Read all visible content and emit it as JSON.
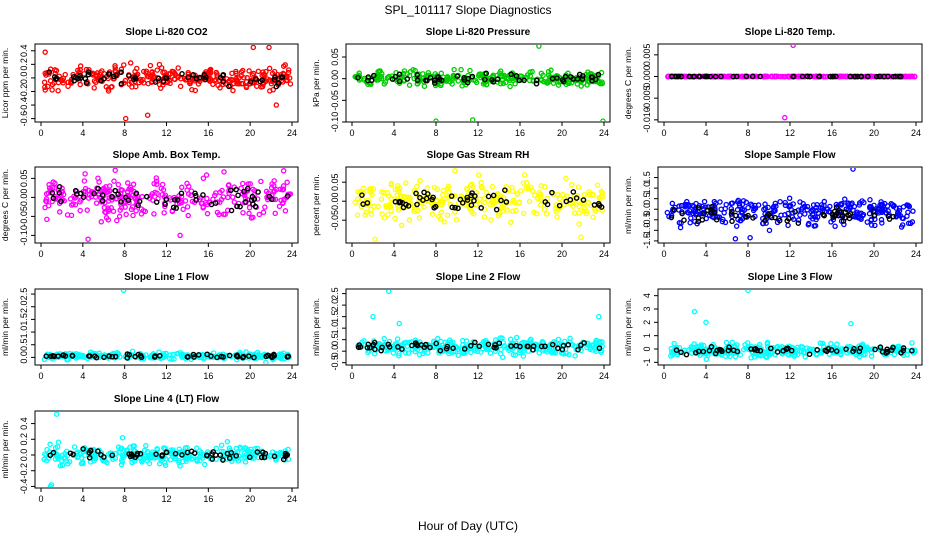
{
  "title": "SPL_101117  Slope Diagnostics",
  "xlabel": "Hour of Day (UTC)",
  "colors": {
    "axes": "#000000",
    "highlight": "#000000"
  },
  "chart_data": [
    {
      "type": "scatter",
      "title": "Slope Li-820 CO2",
      "ylabel": "Licor ppm per min.",
      "color": "#ff0000",
      "ylim": [
        -0.65,
        0.5
      ],
      "yticks": [
        "-0.6",
        "-0.4",
        "-0.2",
        "0.0",
        "0.2",
        "0.4"
      ],
      "ytick_values": [
        -0.6,
        -0.4,
        -0.2,
        0,
        0.2,
        0.4
      ],
      "xticks": [
        0,
        4,
        8,
        12,
        16,
        20,
        24
      ],
      "center": 0.0,
      "spread": 0.12,
      "outliers": [
        [
          8.1,
          -0.6
        ],
        [
          10.2,
          -0.55
        ],
        [
          20.3,
          0.45
        ],
        [
          21.8,
          0.45
        ],
        [
          0.4,
          0.38
        ],
        [
          22.5,
          -0.4
        ]
      ]
    },
    {
      "type": "scatter",
      "title": "Slope Li-820 Pressure",
      "ylabel": "kPa per min.",
      "color": "#00cc00",
      "ylim": [
        -0.1,
        0.08
      ],
      "yticks": [
        "-0.10",
        "-0.05",
        "0.00",
        "0.05"
      ],
      "ytick_values": [
        -0.1,
        -0.05,
        0,
        0.05
      ],
      "xticks": [
        0,
        4,
        8,
        12,
        16,
        20,
        24
      ],
      "center": 0.0,
      "spread": 0.012,
      "outliers": [
        [
          17.8,
          0.075
        ],
        [
          8.0,
          -0.098
        ],
        [
          11.5,
          -0.095
        ],
        [
          23.9,
          -0.098
        ]
      ]
    },
    {
      "type": "scatter",
      "title": "Slope Li-820 Temp.",
      "ylabel": "degrees C per min.",
      "color": "#ff00ff",
      "ylim": [
        -0.0105,
        0.0075
      ],
      "yticks": [
        "-0.010",
        "-0.005",
        "0.000",
        "0.005"
      ],
      "ytick_values": [
        -0.01,
        -0.005,
        0,
        0.005
      ],
      "xticks": [
        0,
        4,
        8,
        12,
        16,
        20,
        24
      ],
      "center": 0.0,
      "spread": 5e-05,
      "outliers": [
        [
          12.3,
          0.0072
        ],
        [
          11.5,
          -0.0095
        ]
      ]
    },
    {
      "type": "scatter",
      "title": "Slope Amb. Box Temp.",
      "ylabel": "degrees C per min.",
      "color": "#ff00ff",
      "ylim": [
        -0.12,
        0.08
      ],
      "yticks": [
        "-0.10",
        "-0.05",
        "0.00",
        "0.05"
      ],
      "ytick_values": [
        -0.1,
        -0.05,
        0,
        0.05
      ],
      "xticks": [
        0,
        4,
        8,
        12,
        16,
        20,
        24
      ],
      "center": 0.0,
      "spread": 0.035,
      "outliers": [
        [
          4.5,
          -0.11
        ],
        [
          13.3,
          -0.1
        ],
        [
          23.2,
          0.07
        ]
      ]
    },
    {
      "type": "scatter",
      "title": "Slope Gas Stream RH",
      "ylabel": "percent per min.",
      "color": "#ffff00",
      "ylim": [
        -0.11,
        0.09
      ],
      "yticks": [
        "-0.05",
        "0.00",
        "0.05"
      ],
      "ytick_values": [
        -0.05,
        0,
        0.05
      ],
      "xticks": [
        0,
        4,
        8,
        12,
        16,
        20,
        24
      ],
      "center": 0.0,
      "spread": 0.035,
      "outliers": [
        [
          2.2,
          -0.1
        ],
        [
          9.8,
          0.08
        ],
        [
          21.8,
          -0.095
        ]
      ]
    },
    {
      "type": "scatter",
      "title": "Slope Sample Flow",
      "ylabel": "ml/min per min.",
      "color": "#0000ff",
      "ylim": [
        -1.6,
        2.0
      ],
      "yticks": [
        "-1.5",
        "-1.0",
        "-0.5",
        "0.0",
        "0.5",
        "1.0",
        "1.5"
      ],
      "ytick_values": [
        -1.5,
        -1,
        -0.5,
        0,
        0.5,
        1,
        1.5
      ],
      "xticks": [
        0,
        4,
        8,
        12,
        16,
        20,
        24
      ],
      "center": -0.3,
      "spread": 0.45,
      "outliers": [
        [
          18.0,
          1.9
        ],
        [
          6.8,
          -1.4
        ],
        [
          8.2,
          -1.35
        ]
      ]
    },
    {
      "type": "scatter",
      "title": "Slope Line 1 Flow",
      "ylabel": "ml/min per min.",
      "color": "#00ffff",
      "ylim": [
        -0.3,
        2.7
      ],
      "yticks": [
        "0.0",
        "0.5",
        "1.0",
        "1.5",
        "2.0",
        "2.5"
      ],
      "ytick_values": [
        0,
        0.5,
        1,
        1.5,
        2,
        2.5
      ],
      "xticks": [
        0,
        4,
        8,
        12,
        16,
        20,
        24
      ],
      "center": 0.05,
      "spread": 0.09,
      "outliers": [
        [
          7.9,
          2.65
        ],
        [
          21.5,
          -0.2
        ]
      ]
    },
    {
      "type": "scatter",
      "title": "Slope Line 2 Flow",
      "ylabel": "ml/min per min.",
      "color": "#00ffff",
      "ylim": [
        -0.6,
        2.7
      ],
      "yticks": [
        "-0.5",
        "0.0",
        "0.5",
        "1.0",
        "1.5",
        "2.0",
        "2.5"
      ],
      "ytick_values": [
        -0.5,
        0,
        0.5,
        1,
        1.5,
        2,
        2.5
      ],
      "xticks": [
        0,
        4,
        8,
        12,
        16,
        20,
        24
      ],
      "center": 0.2,
      "spread": 0.25,
      "outliers": [
        [
          3.5,
          2.6
        ],
        [
          2.0,
          1.5
        ],
        [
          23.5,
          1.5
        ],
        [
          4.5,
          1.2
        ]
      ]
    },
    {
      "type": "scatter",
      "title": "Slope Line 3 Flow",
      "ylabel": "ml/min per min.",
      "color": "#00ffff",
      "ylim": [
        -1.2,
        4.5
      ],
      "yticks": [
        "-1",
        "0",
        "1",
        "2",
        "3",
        "4"
      ],
      "ytick_values": [
        -1,
        0,
        1,
        2,
        3,
        4
      ],
      "xticks": [
        0,
        4,
        8,
        12,
        16,
        20,
        24
      ],
      "center": -0.1,
      "spread": 0.35,
      "outliers": [
        [
          8.0,
          4.4
        ],
        [
          2.9,
          2.8
        ],
        [
          17.8,
          1.9
        ],
        [
          4.0,
          2.0
        ]
      ]
    },
    {
      "type": "scatter",
      "title": "Slope Line 4 (LT) Flow",
      "ylabel": "ml/min per min.",
      "color": "#00ffff",
      "ylim": [
        -0.42,
        0.56
      ],
      "yticks": [
        "-0.4",
        "-0.2",
        "0.0",
        "0.2",
        "0.4"
      ],
      "ytick_values": [
        -0.4,
        -0.2,
        0,
        0.2,
        0.4
      ],
      "xticks": [
        0,
        4,
        8,
        12,
        16,
        20,
        24
      ],
      "center": 0.0,
      "spread": 0.08,
      "outliers": [
        [
          1.5,
          0.52
        ],
        [
          1.0,
          -0.38
        ],
        [
          0.9,
          -0.4
        ],
        [
          7.8,
          0.22
        ]
      ]
    }
  ]
}
